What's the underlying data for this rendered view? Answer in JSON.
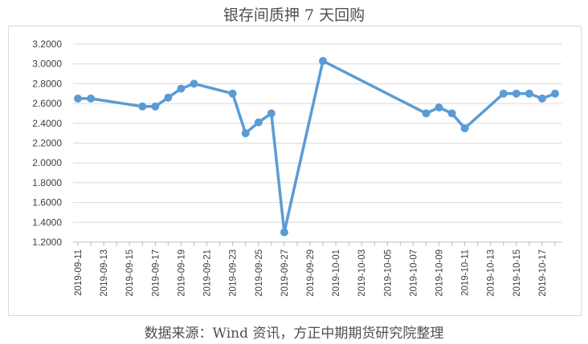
{
  "chart_data": {
    "type": "line",
    "title": "银存间质押 7 天回购",
    "source": "数据来源：Wind 资讯，方正中期期货研究院整理",
    "xlabel": "",
    "ylabel": "",
    "ylim": [
      1.2,
      3.2
    ],
    "y_ticks": [
      "1.2000",
      "1.4000",
      "1.6000",
      "1.8000",
      "2.0000",
      "2.2000",
      "2.4000",
      "2.6000",
      "2.8000",
      "3.0000",
      "3.2000"
    ],
    "x_range": [
      "2019-09-11",
      "2019-10-18"
    ],
    "x_ticks": [
      "2019-09-11",
      "2019-09-13",
      "2019-09-15",
      "2019-09-17",
      "2019-09-19",
      "2019-09-21",
      "2019-09-23",
      "2019-09-25",
      "2019-09-27",
      "2019-09-29",
      "2019-10-01",
      "2019-10-03",
      "2019-10-05",
      "2019-10-07",
      "2019-10-09",
      "2019-10-11",
      "2019-10-13",
      "2019-10-15",
      "2019-10-17"
    ],
    "grid": "horizontal",
    "legend": "none",
    "color": "#5b9bd5",
    "series": [
      {
        "name": "",
        "points": [
          {
            "x": "2019-09-11",
            "y": 2.65
          },
          {
            "x": "2019-09-12",
            "y": 2.65
          },
          {
            "x": "2019-09-16",
            "y": 2.57
          },
          {
            "x": "2019-09-17",
            "y": 2.57
          },
          {
            "x": "2019-09-18",
            "y": 2.66
          },
          {
            "x": "2019-09-19",
            "y": 2.75
          },
          {
            "x": "2019-09-20",
            "y": 2.8
          },
          {
            "x": "2019-09-23",
            "y": 2.7
          },
          {
            "x": "2019-09-24",
            "y": 2.3
          },
          {
            "x": "2019-09-25",
            "y": 2.41
          },
          {
            "x": "2019-09-26",
            "y": 2.5
          },
          {
            "x": "2019-09-27",
            "y": 1.3
          },
          {
            "x": "2019-09-30",
            "y": 3.03
          },
          {
            "x": "2019-10-08",
            "y": 2.5
          },
          {
            "x": "2019-10-09",
            "y": 2.56
          },
          {
            "x": "2019-10-10",
            "y": 2.5
          },
          {
            "x": "2019-10-11",
            "y": 2.35
          },
          {
            "x": "2019-10-14",
            "y": 2.7
          },
          {
            "x": "2019-10-15",
            "y": 2.7
          },
          {
            "x": "2019-10-16",
            "y": 2.7
          },
          {
            "x": "2019-10-17",
            "y": 2.65
          },
          {
            "x": "2019-10-18",
            "y": 2.7
          }
        ]
      }
    ]
  }
}
